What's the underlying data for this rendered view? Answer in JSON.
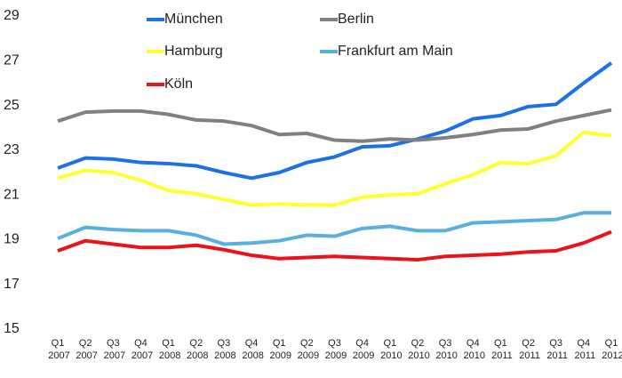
{
  "chart_data": {
    "type": "line",
    "categories": [
      "Q1 2007",
      "Q2 2007",
      "Q3 2007",
      "Q4 2007",
      "Q1 2008",
      "Q2 2008",
      "Q3 2008",
      "Q4 2008",
      "Q1 2009",
      "Q2 2009",
      "Q3 2009",
      "Q4 2009",
      "Q1 2010",
      "Q2 2010",
      "Q3 2010",
      "Q4 2010",
      "Q1 2011",
      "Q2 2011",
      "Q3 2011",
      "Q4 2011",
      "Q1 2012"
    ],
    "series": [
      {
        "name": "München",
        "color": "#1f6fe6",
        "values": [
          22.2,
          22.65,
          22.6,
          22.45,
          22.4,
          22.3,
          22.0,
          21.75,
          22.0,
          22.45,
          22.7,
          23.15,
          23.2,
          23.5,
          23.85,
          24.4,
          24.55,
          24.95,
          25.05,
          26.0,
          26.9
        ]
      },
      {
        "name": "Berlin",
        "color": "#808080",
        "values": [
          24.3,
          24.7,
          24.75,
          24.75,
          24.6,
          24.35,
          24.3,
          24.1,
          23.7,
          23.75,
          23.45,
          23.4,
          23.5,
          23.45,
          23.55,
          23.7,
          23.9,
          23.95,
          24.3,
          24.55,
          24.8
        ]
      },
      {
        "name": "Hamburg",
        "color": "#ffff33",
        "values": [
          21.75,
          22.1,
          22.0,
          21.65,
          21.2,
          21.05,
          20.8,
          20.55,
          20.6,
          20.55,
          20.55,
          20.9,
          21.0,
          21.05,
          21.5,
          21.9,
          22.45,
          22.4,
          22.75,
          23.8,
          23.65
        ]
      },
      {
        "name": "Frankfurt am Main",
        "color": "#5aaee0",
        "values": [
          19.05,
          19.55,
          19.45,
          19.4,
          19.4,
          19.2,
          18.8,
          18.85,
          18.95,
          19.2,
          19.15,
          19.5,
          19.6,
          19.4,
          19.4,
          19.75,
          19.8,
          19.85,
          19.9,
          20.2,
          20.2
        ]
      },
      {
        "name": "Köln",
        "color": "#e8131b",
        "values": [
          18.5,
          18.95,
          18.8,
          18.65,
          18.65,
          18.75,
          18.55,
          18.3,
          18.15,
          18.2,
          18.25,
          18.2,
          18.15,
          18.1,
          18.25,
          18.3,
          18.35,
          18.45,
          18.5,
          18.85,
          19.35
        ]
      }
    ],
    "ylim": [
      15,
      29
    ],
    "yticks": [
      15,
      17,
      19,
      21,
      23,
      25,
      27,
      29
    ],
    "grid": false
  }
}
